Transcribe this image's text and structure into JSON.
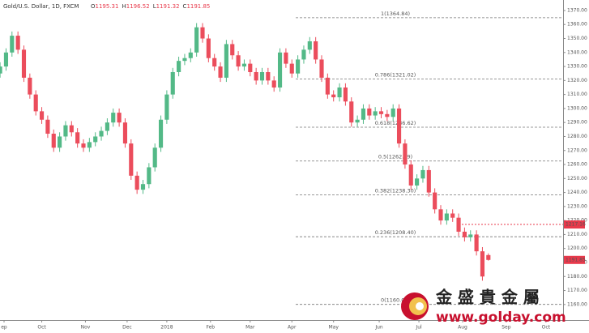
{
  "chart_data": {
    "type": "candlestick",
    "title": "Gold/U.S. Dollar, 1D, FXCM",
    "ohlc_header": [
      {
        "key": "O",
        "value": 1195.31
      },
      {
        "key": "H",
        "value": 1196.52
      },
      {
        "key": "L",
        "value": 1191.32
      },
      {
        "key": "C",
        "value": 1191.85
      }
    ],
    "up_color": "#53b987",
    "down_color": "#eb4d5c",
    "x": [
      -2,
      1,
      4,
      7,
      10,
      13,
      16,
      19,
      22,
      25,
      28,
      31,
      34,
      37,
      40,
      43,
      46,
      49,
      52,
      55,
      58,
      61,
      64,
      67,
      70,
      73,
      76,
      79,
      82,
      85,
      88,
      91,
      94,
      97,
      100,
      103,
      106,
      109,
      112,
      115,
      118,
      121,
      124,
      127,
      130,
      133,
      136,
      139,
      142,
      145,
      148,
      151,
      154,
      157,
      160,
      163,
      166,
      169,
      172,
      175,
      178,
      181,
      184,
      187,
      190,
      193,
      196,
      199,
      202,
      205,
      208,
      211,
      214,
      217,
      220,
      223,
      226,
      229,
      232,
      235,
      238,
      241,
      244
    ],
    "open": [
      1325,
      1330,
      1340,
      1352,
      1342,
      1322,
      1310,
      1298,
      1292,
      1282,
      1272,
      1280,
      1288,
      1283,
      1275,
      1272,
      1276,
      1280,
      1284,
      1290,
      1297,
      1290,
      1275,
      1252,
      1242,
      1246,
      1258,
      1272,
      1292,
      1310,
      1326,
      1334,
      1336,
      1340,
      1358,
      1350,
      1336,
      1330,
      1322,
      1346,
      1338,
      1330,
      1332,
      1326,
      1320,
      1326,
      1320,
      1315,
      1340,
      1332,
      1325,
      1335,
      1342,
      1348,
      1335,
      1322,
      1310,
      1308,
      1315,
      1305,
      1290,
      1292,
      1300,
      1295,
      1298,
      1296,
      1294,
      1300,
      1275,
      1260,
      1245,
      1250,
      1256,
      1240,
      1228,
      1220,
      1225,
      1222,
      1212,
      1208,
      1210,
      1198,
      1195.31
    ],
    "high": [
      1333,
      1343,
      1355,
      1355,
      1345,
      1325,
      1313,
      1301,
      1295,
      1285,
      1283,
      1291,
      1291,
      1286,
      1278,
      1279,
      1283,
      1287,
      1293,
      1300,
      1300,
      1293,
      1278,
      1255,
      1249,
      1261,
      1275,
      1295,
      1313,
      1329,
      1337,
      1339,
      1343,
      1361,
      1361,
      1353,
      1339,
      1333,
      1349,
      1349,
      1341,
      1335,
      1335,
      1329,
      1329,
      1329,
      1323,
      1343,
      1343,
      1335,
      1338,
      1345,
      1351,
      1351,
      1338,
      1325,
      1313,
      1318,
      1318,
      1308,
      1295,
      1303,
      1303,
      1301,
      1301,
      1299,
      1303,
      1303,
      1278,
      1263,
      1253,
      1259,
      1259,
      1243,
      1231,
      1228,
      1228,
      1225,
      1215,
      1213,
      1213,
      1201,
      1196.52
    ],
    "low": [
      1322,
      1327,
      1337,
      1339,
      1319,
      1307,
      1295,
      1289,
      1279,
      1269,
      1269,
      1277,
      1280,
      1272,
      1269,
      1269,
      1273,
      1277,
      1281,
      1287,
      1287,
      1272,
      1249,
      1239,
      1239,
      1243,
      1255,
      1269,
      1289,
      1307,
      1323,
      1331,
      1333,
      1337,
      1347,
      1333,
      1327,
      1319,
      1319,
      1335,
      1327,
      1327,
      1323,
      1317,
      1317,
      1317,
      1312,
      1312,
      1329,
      1322,
      1322,
      1332,
      1339,
      1332,
      1319,
      1307,
      1305,
      1305,
      1302,
      1287,
      1287,
      1289,
      1292,
      1292,
      1293,
      1291,
      1291,
      1272,
      1257,
      1242,
      1242,
      1247,
      1237,
      1225,
      1217,
      1217,
      1219,
      1209,
      1205,
      1205,
      1195,
      1177,
      1191.32
    ],
    "close": [
      1330,
      1340,
      1352,
      1342,
      1322,
      1310,
      1298,
      1292,
      1282,
      1272,
      1280,
      1288,
      1283,
      1275,
      1272,
      1276,
      1280,
      1284,
      1290,
      1297,
      1290,
      1275,
      1252,
      1242,
      1246,
      1258,
      1272,
      1292,
      1310,
      1326,
      1334,
      1336,
      1340,
      1358,
      1350,
      1336,
      1330,
      1322,
      1346,
      1338,
      1330,
      1332,
      1326,
      1320,
      1326,
      1320,
      1315,
      1340,
      1332,
      1325,
      1335,
      1342,
      1348,
      1335,
      1322,
      1310,
      1308,
      1315,
      1305,
      1290,
      1292,
      1300,
      1295,
      1298,
      1296,
      1294,
      1300,
      1275,
      1260,
      1245,
      1250,
      1256,
      1240,
      1228,
      1220,
      1225,
      1222,
      1212,
      1208,
      1210,
      1198,
      1180,
      1191.85
    ],
    "xlim": [
      -2.04,
      281.63
    ],
    "xticks": [
      {
        "value": 0,
        "label": "ep"
      },
      {
        "value": 19,
        "label": "Oct"
      },
      {
        "value": 41,
        "label": "Nov"
      },
      {
        "value": 62,
        "label": "Dec"
      },
      {
        "value": 82,
        "label": "2018"
      },
      {
        "value": 104,
        "label": "Feb"
      },
      {
        "value": 124,
        "label": "Mar"
      },
      {
        "value": 145,
        "label": "Apr"
      },
      {
        "value": 166,
        "label": "May"
      },
      {
        "value": 189,
        "label": "Jun"
      },
      {
        "value": 209,
        "label": "Jul"
      },
      {
        "value": 231,
        "label": "Aug"
      },
      {
        "value": 253,
        "label": "Sep"
      },
      {
        "value": 273,
        "label": "Oct"
      }
    ],
    "ylim": [
      1148.9,
      1377.5
    ],
    "yticks": [
      {
        "value": 1160,
        "label": "1160.00"
      },
      {
        "value": 1170,
        "label": "1170.00"
      },
      {
        "value": 1180,
        "label": "1180.00"
      },
      {
        "value": 1190,
        "label": "1190.00"
      },
      {
        "value": 1200,
        "label": "1200.00"
      },
      {
        "value": 1210,
        "label": "1210.00"
      },
      {
        "value": 1220,
        "label": "1220.00"
      },
      {
        "value": 1230,
        "label": "1230.00"
      },
      {
        "value": 1240,
        "label": "1240.00"
      },
      {
        "value": 1250,
        "label": "1250.00"
      },
      {
        "value": 1260,
        "label": "1260.00"
      },
      {
        "value": 1270,
        "label": "1270.00"
      },
      {
        "value": 1280,
        "label": "1280.00"
      },
      {
        "value": 1290,
        "label": "1290.00"
      },
      {
        "value": 1300,
        "label": "1300.00"
      },
      {
        "value": 1310,
        "label": "1310.00"
      },
      {
        "value": 1320,
        "label": "1320.00"
      },
      {
        "value": 1330,
        "label": "1330.00"
      },
      {
        "value": 1340,
        "label": "1340.00"
      },
      {
        "value": 1350,
        "label": "1350.00"
      },
      {
        "value": 1360,
        "label": "1360.00"
      },
      {
        "value": 1370,
        "label": "1370.00"
      }
    ],
    "fib_levels": [
      {
        "label": "1(1364.84)",
        "value": 1364.84
      },
      {
        "label": "0.786(1321.02)",
        "value": 1321.02
      },
      {
        "label": "0.618(1286.62)",
        "value": 1286.62
      },
      {
        "label": "0.5(1262.49)",
        "value": 1262.49
      },
      {
        "label": "0.382(1238.30)",
        "value": 1238.3
      },
      {
        "label": "0.236(1208.40)",
        "value": 1208.4
      },
      {
        "label": "0(1160.07)",
        "value": 1160.07
      }
    ],
    "tag_color": "#e8394b",
    "price_tags": [
      1217.16,
      1191.85
    ]
  },
  "logo": {
    "name": "金 盛 貴 金 屬",
    "url": "www.golday.com"
  }
}
